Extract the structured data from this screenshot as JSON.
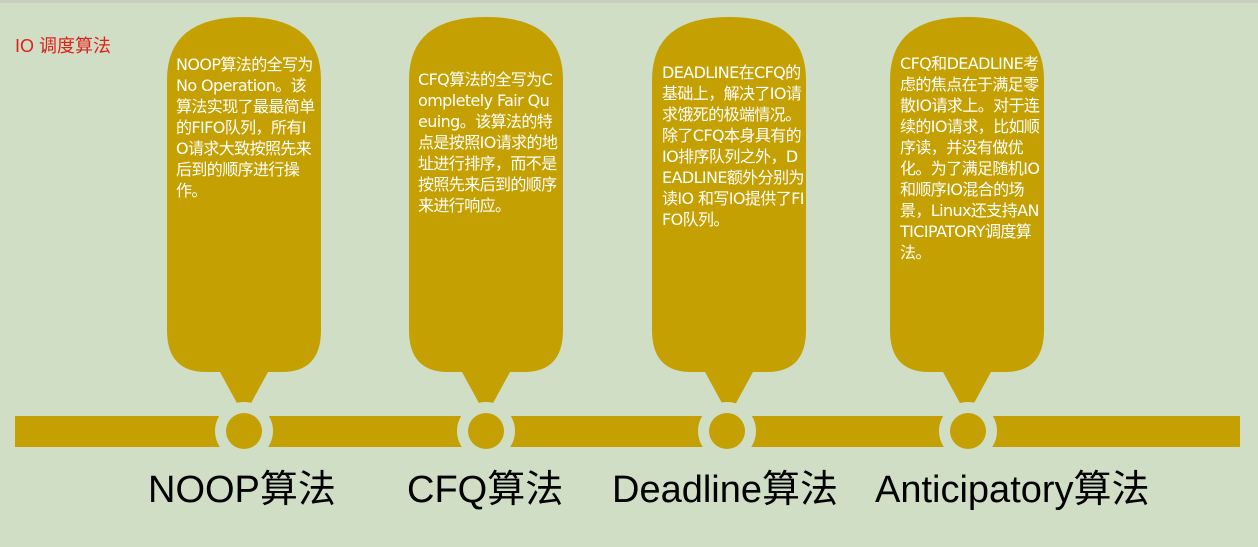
{
  "page": {
    "title": "IO 调度算法"
  },
  "stages": [
    {
      "label": "NOOP算法",
      "description": "NOOP算法的全写为No Operation。该算法实现了最最简单的FIFO队列，所有IO请求大致按照先来后到的顺序进行操作。"
    },
    {
      "label": "CFQ算法",
      "description": "CFQ算法的全写为Completely Fair Queuing。该算法的特点是按照IO请求的地址进行排序，而不是按照先来后到的顺序来进行响应。"
    },
    {
      "label": "Deadline算法",
      "description": "DEADLINE在CFQ的基础上，解决了IO请求饿死的极端情况。除了CFQ本身具有的IO排序队列之外，DEADLINE额外分别为读IO 和写IO提供了FIFO队列。"
    },
    {
      "label": "Anticipatory算法",
      "description": "CFQ和DEADLINE考虑的焦点在于满足零散IO请求上。对于连续的IO请求，比如顺序读，并没有做优化。为了满足随机IO和顺序IO混合的场景，Linux还支持ANTICIPATORY调度算法。"
    }
  ],
  "colors": {
    "background": "#cfdec4",
    "accent": "#c4a003",
    "title": "#e0201a"
  }
}
